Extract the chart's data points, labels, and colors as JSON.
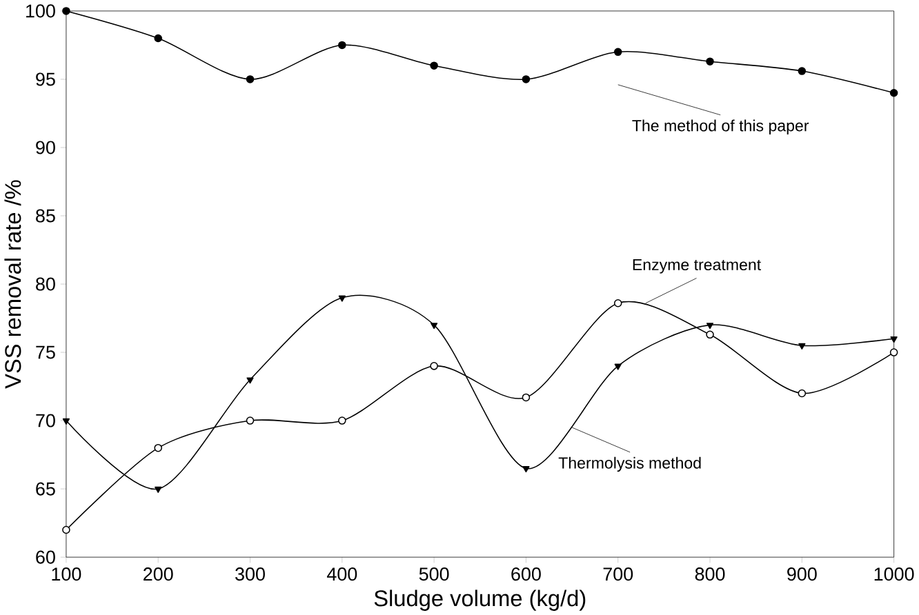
{
  "chart_data": {
    "type": "line",
    "xlabel": "Sludge volume (kg/d)",
    "ylabel": "VSS removal rate /%",
    "x": [
      100,
      200,
      300,
      400,
      500,
      600,
      700,
      800,
      900,
      1000
    ],
    "xlim": [
      100,
      1000
    ],
    "xticks": [
      100,
      200,
      300,
      400,
      500,
      600,
      700,
      800,
      900,
      1000
    ],
    "ylim": [
      60,
      100
    ],
    "yticks": [
      60,
      65,
      70,
      75,
      80,
      85,
      90,
      95,
      100
    ],
    "series": [
      {
        "name": "The method of this paper",
        "color": "#000000",
        "marker": "circle",
        "values": [
          100,
          98,
          95,
          97.5,
          96,
          95,
          97,
          96.3,
          95.6,
          94
        ]
      },
      {
        "name": "Enzyme treatment",
        "color": "#000000",
        "marker": "open circle",
        "values": [
          62,
          68,
          70,
          70,
          74,
          71.7,
          78.6,
          76.3,
          72,
          75
        ]
      },
      {
        "name": "Thermolysis method",
        "color": "#000000",
        "marker": "triangle",
        "values": [
          70,
          65,
          73,
          79,
          77,
          66.5,
          74,
          77,
          75.5,
          76
        ]
      }
    ]
  }
}
